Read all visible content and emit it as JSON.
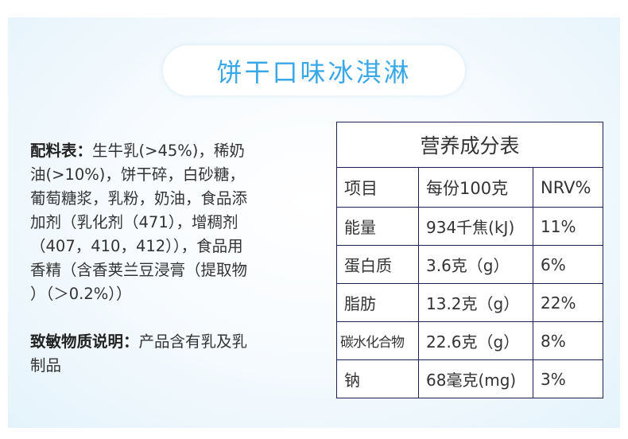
{
  "title": "饼干口味冰淇淋",
  "ingredients": {
    "label": "配料表：",
    "lines": [
      "生牛乳(>45%)，稀奶",
      "油(>10%)，饼干碎，白砂糖，",
      "葡萄糖浆，乳粉，奶油，食品添",
      "加剂（乳化剂（471），增稠剂",
      "（407，410，412）），食品用",
      "香精（含香荚兰豆浸膏（提取物",
      "）（＞0.2%））"
    ]
  },
  "allergen": {
    "label": "致敏物质说明：",
    "lines": [
      "产品含有乳及乳",
      "制品"
    ]
  },
  "nutrition": {
    "title": "营养成分表",
    "headers": [
      "项目",
      "每份100克",
      "NRV%"
    ],
    "rows": [
      [
        "能量",
        "934千焦(kJ)",
        "11%"
      ],
      [
        "蛋白质",
        "3.6克（g）",
        "6%"
      ],
      [
        "脂肪",
        "13.2克（g）",
        "22%"
      ],
      [
        "碳水化合物",
        "22.6克（g）",
        "8%"
      ],
      [
        "钠",
        "68毫克(mg)",
        "3%"
      ]
    ]
  },
  "colors": {
    "accent": "#3aa8e6",
    "border": "#1c2350"
  }
}
